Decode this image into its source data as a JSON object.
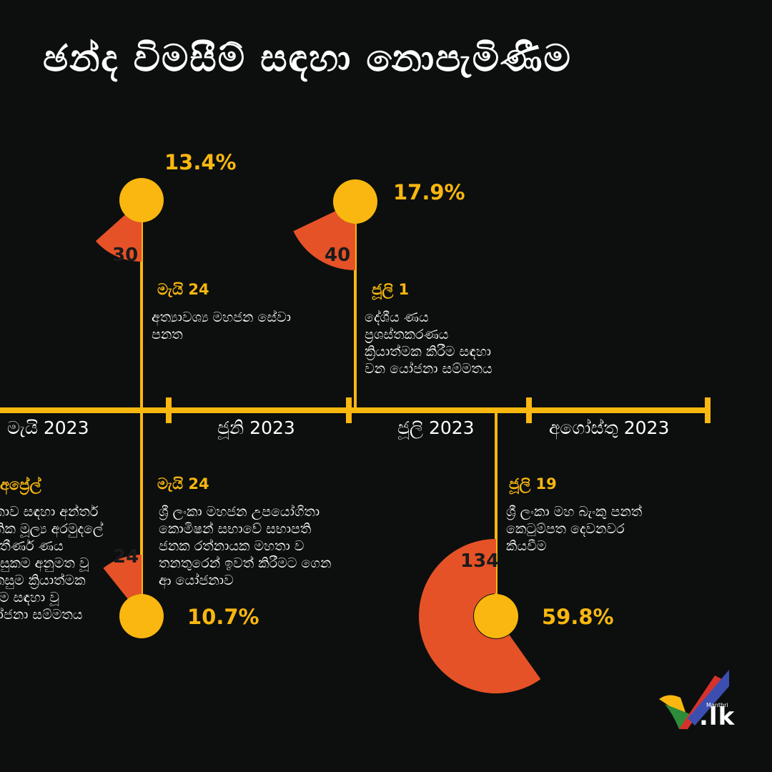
{
  "title": "ඡන්ද විමසීම් සඳහා නොපැමිණීම",
  "months": [
    "මැයි 2023",
    "ජූනි 2023",
    "ජූලි 2023",
    "අගෝස්තු 2023"
  ],
  "events": [
    {
      "id": "april",
      "position": "below",
      "date": "අප්‍රේල්",
      "description": "ලංකාව සඳහා අන්තර් ජාතික මූල්‍ය අරමුදලේ විස්තීර්ණ ණය පහසුකම අනුමත වූ සැකසුම ක්‍රියාත්මක කිරීම සඳහා වූ යෝජනා සම්මතය",
      "absence_count": 24,
      "absence_percent": "10.7%"
    },
    {
      "id": "may24-top",
      "position": "above",
      "date": "මැයි 24",
      "description": "අත්‍යාවශ්‍ය මහජන සේවා පනත",
      "absence_count": 30,
      "absence_percent": "13.4%"
    },
    {
      "id": "may24-bottom",
      "position": "below",
      "date": "මැයි 24",
      "description": "ශ්‍රී ලංකා මහජන උපයෝගිතා කොමිෂන් සභාවේ සභාපති ජනක රත්නායක මහතා ව තනතුරෙන් ඉවත් කිරීමට ගෙන ආ යෝජනාව",
      "absence_count": null,
      "absence_percent": null
    },
    {
      "id": "july1",
      "position": "above",
      "date": "ජූලි 1",
      "description": "දේශීය ණය ප්‍රශස්තකරණය ක්‍රියාත්මක කිරීම සඳහා වන යෝජනා සම්මතය",
      "absence_count": 40,
      "absence_percent": "17.9%"
    },
    {
      "id": "july19",
      "position": "below",
      "date": "ජූලි 19",
      "description": "ශ්‍රී ලංකා මහ බැංකු පනත් කෙටුම්පත දෙවනවර කියවීම",
      "absence_count": 134,
      "absence_percent": "59.8%"
    }
  ],
  "logo": {
    "small": "Manthri",
    "main": ".lk"
  },
  "colors": {
    "background": "#0c0f0e",
    "accent_yellow": "#f9b70f",
    "accent_orange": "#e65227"
  }
}
